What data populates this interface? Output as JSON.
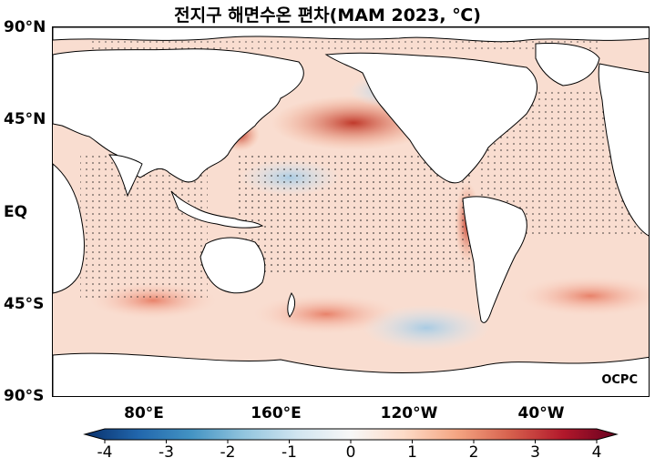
{
  "title": "전지구 해면수온 편차(MAM 2023, ℃)",
  "lat_labels": [
    "90°N",
    "45°N",
    "EQ",
    "45°S",
    "90°S"
  ],
  "lon_labels": [
    "80°E",
    "160°E",
    "120°W",
    "40°W"
  ],
  "credit": "OCPC",
  "colorbar": {
    "ticks": [
      "-4",
      "-3",
      "-2",
      "-1",
      "0",
      "1",
      "2",
      "3",
      "4"
    ],
    "min": -4,
    "max": 4,
    "colors": [
      "#08306b",
      "#2166ac",
      "#4393c3",
      "#92c5de",
      "#d1e5f0",
      "#f7f7f7",
      "#fddbc7",
      "#f4a582",
      "#d6604d",
      "#b2182b",
      "#67001f"
    ]
  }
}
